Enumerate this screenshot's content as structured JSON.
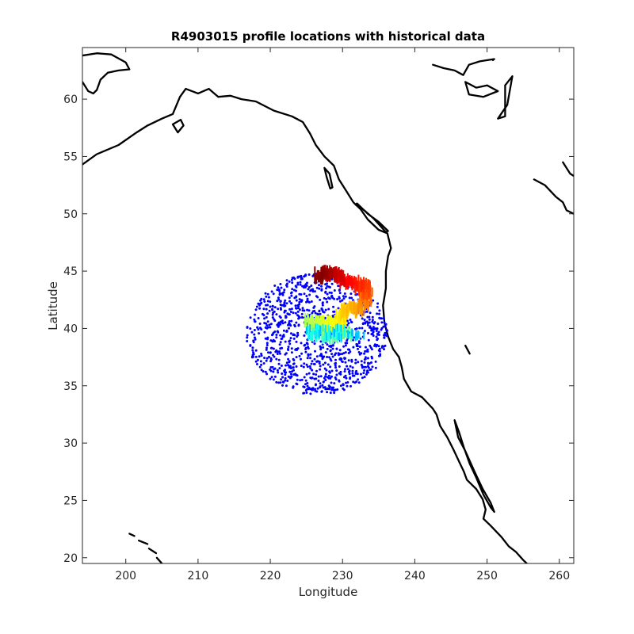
{
  "chart_data": {
    "type": "scatter",
    "title": "R4903015 profile locations with historical data",
    "xlabel": "Longitude",
    "ylabel": "Latitude",
    "xlim": [
      194,
      262
    ],
    "ylim": [
      19.5,
      64.5
    ],
    "xticks": [
      "200",
      "210",
      "220",
      "230",
      "240",
      "250",
      "260"
    ],
    "yticks": [
      "20",
      "25",
      "30",
      "35",
      "40",
      "45",
      "50",
      "55",
      "60"
    ],
    "grid": false,
    "legend": "none",
    "colors": {
      "historical": "#0000ff",
      "coastline": "#000000",
      "colormap": "jet"
    },
    "series": [
      {
        "role": "historical",
        "cluster": {
          "center": [
            226.5,
            39.5
          ],
          "radius_lon": 9.8,
          "radius_lat": 4.6,
          "count": 1100
        }
      },
      {
        "role": "profiles",
        "track": [
          [
            226.0,
            39.6
          ],
          [
            228.0,
            39.4
          ],
          [
            230.5,
            39.6
          ],
          [
            225.5,
            40.6
          ],
          [
            227.5,
            40.3
          ],
          [
            229.5,
            40.6
          ],
          [
            230.5,
            41.5
          ],
          [
            232.5,
            41.8
          ],
          [
            233.5,
            42.8
          ],
          [
            233.0,
            43.6
          ],
          [
            231.0,
            44.0
          ],
          [
            229.5,
            44.6
          ],
          [
            228.0,
            44.8
          ],
          [
            226.5,
            44.6
          ]
        ]
      }
    ]
  }
}
